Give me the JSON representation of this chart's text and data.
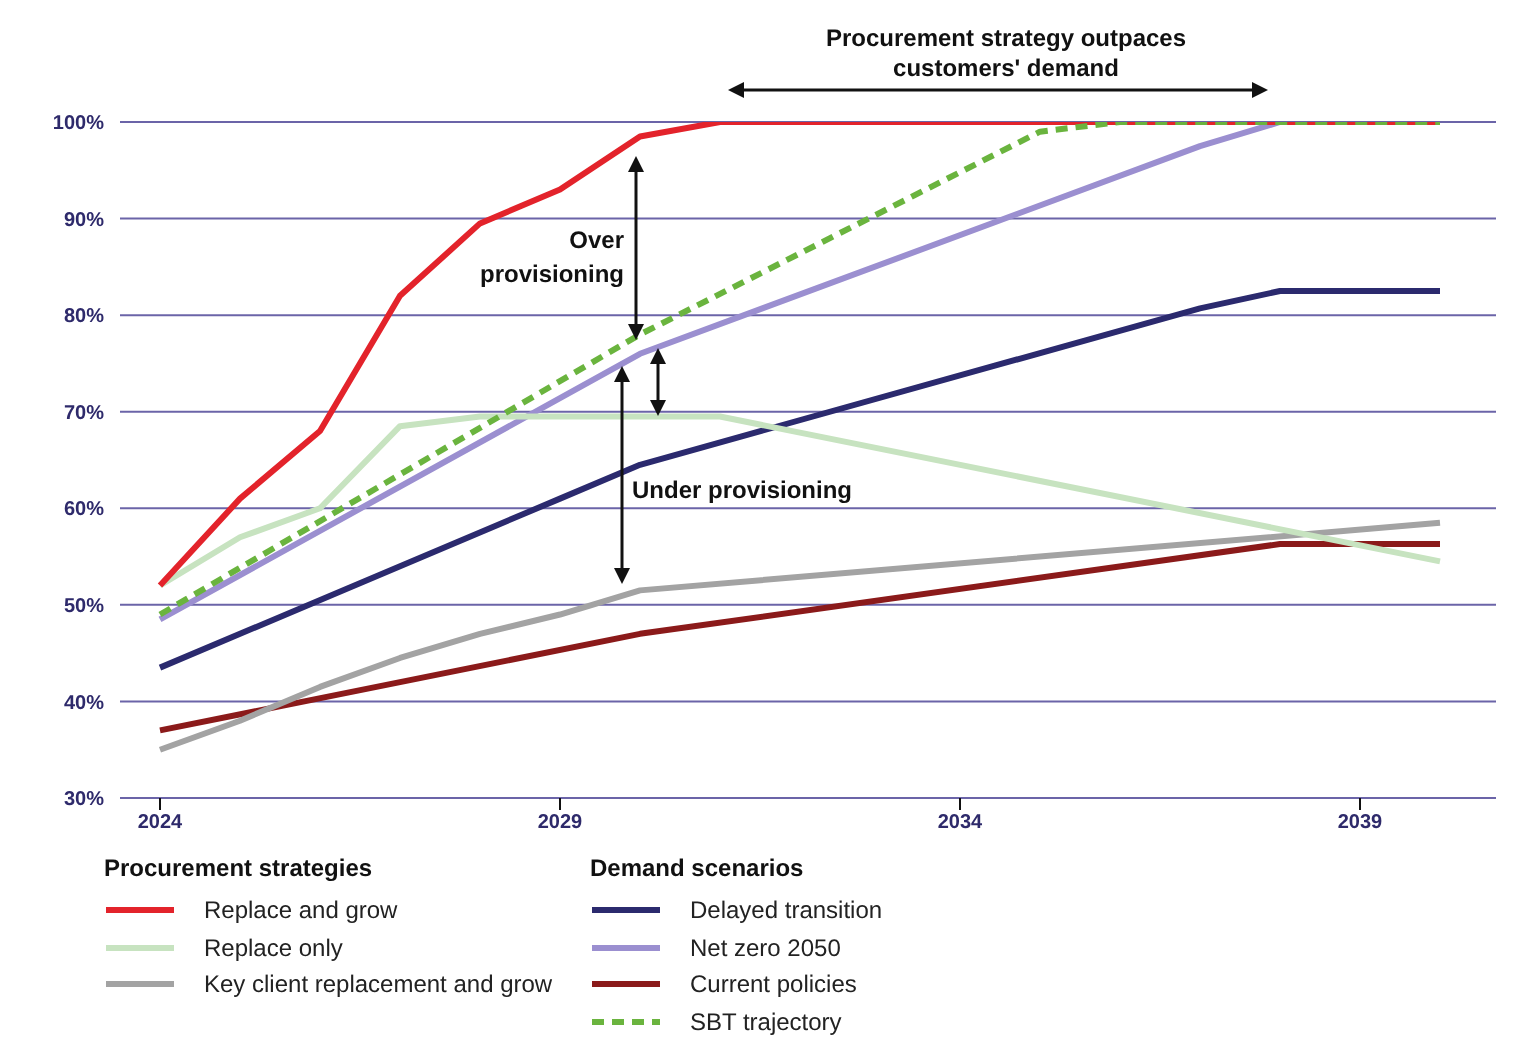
{
  "chart_data": {
    "type": "line",
    "x": [
      2024,
      2025,
      2026,
      2027,
      2028,
      2029,
      2030,
      2031,
      2032,
      2033,
      2034,
      2035,
      2036,
      2037,
      2038,
      2039,
      2040
    ],
    "series": [
      {
        "name": "Replace and grow",
        "color": "#e3232b",
        "values": [
          52,
          61,
          68,
          82,
          89.5,
          93,
          98.5,
          100,
          100,
          100,
          100,
          100,
          100,
          100,
          100,
          100,
          100
        ]
      },
      {
        "name": "Replace only",
        "color": "#c7e3c0",
        "values": [
          52,
          57,
          60,
          68.5,
          69.5,
          69.5,
          69.5,
          69.5,
          null,
          null,
          null,
          null,
          null,
          null,
          null,
          null,
          54.5
        ]
      },
      {
        "name": "Key client replacement and grow",
        "color": "#a3a3a3",
        "values": [
          35,
          38,
          41.5,
          44.5,
          47,
          49,
          51.5,
          null,
          null,
          null,
          null,
          null,
          null,
          null,
          null,
          null,
          58.5
        ]
      },
      {
        "name": "Delayed transition",
        "color": "#2b2a6e",
        "values": [
          43.5,
          null,
          null,
          null,
          null,
          61,
          64.5,
          null,
          null,
          null,
          null,
          null,
          null,
          80.7,
          82.5,
          null,
          82.5
        ]
      },
      {
        "name": "Net zero 2050",
        "color": "#9b8fd0",
        "values": [
          48.5,
          null,
          null,
          null,
          null,
          null,
          76,
          null,
          null,
          null,
          null,
          null,
          null,
          97.5,
          100,
          null,
          100
        ]
      },
      {
        "name": "Current policies",
        "color": "#8b1a1a",
        "values": [
          37,
          null,
          null,
          null,
          null,
          null,
          47,
          null,
          null,
          null,
          null,
          null,
          null,
          null,
          56.3,
          null,
          56.3
        ]
      },
      {
        "name": "SBT trajectory",
        "color": "#6ab43e",
        "line_style": "dashed",
        "values": [
          49,
          null,
          null,
          null,
          null,
          null,
          78,
          null,
          null,
          null,
          null,
          99,
          100,
          null,
          null,
          null,
          100
        ]
      }
    ],
    "xlim": [
      2023.5,
      2040.7
    ],
    "xticks": [
      2024,
      2029,
      2034,
      2039
    ],
    "ylim": [
      30,
      100
    ],
    "yticks": [
      {
        "value": 30,
        "label": "30%"
      },
      {
        "value": 40,
        "label": "40%"
      },
      {
        "value": 50,
        "label": "50%"
      },
      {
        "value": 60,
        "label": "60%"
      },
      {
        "value": 70,
        "label": "70%"
      },
      {
        "value": 80,
        "label": "80%"
      },
      {
        "value": 90,
        "label": "90%"
      },
      {
        "value": 100,
        "label": "100%"
      }
    ],
    "grid": "y",
    "legend": "bottom",
    "marker": "none",
    "legend_title": [
      "Procurement strategies",
      "Demand scenarios"
    ],
    "annotations": [
      "Procurement strategy outpaces customers' demand",
      "Over provisioning",
      "Under provisioning"
    ]
  }
}
